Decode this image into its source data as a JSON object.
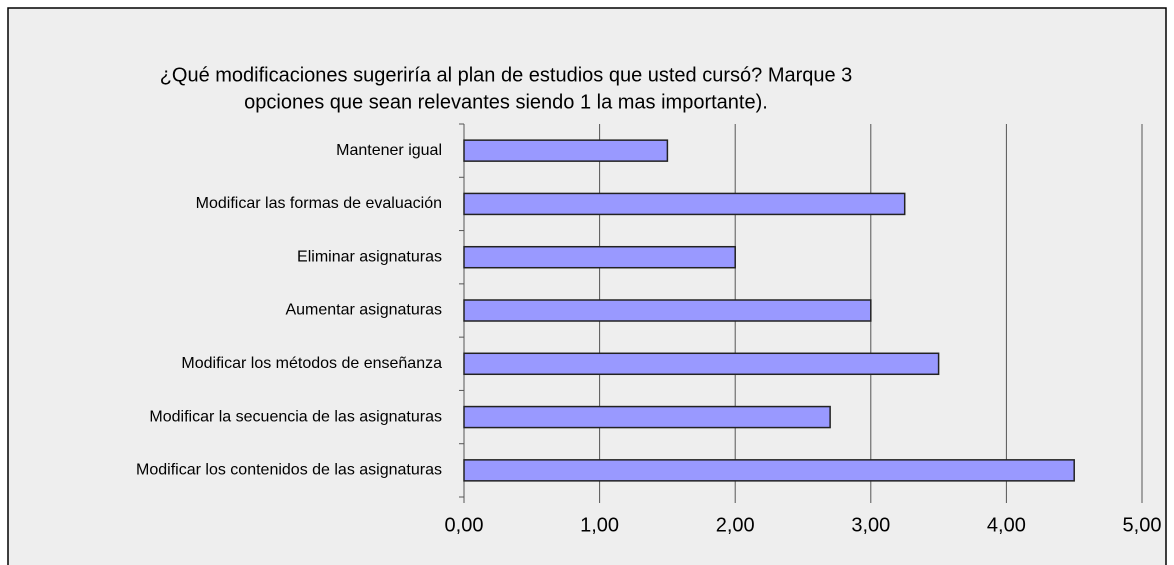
{
  "chart_data": {
    "type": "bar",
    "orientation": "horizontal",
    "title": [
      "¿Qué modificaciones sugeriría al plan de estudios que usted cursó? Marque 3",
      "opciones que sean relevantes siendo 1 la mas importante)."
    ],
    "categories": [
      "Mantener igual",
      "Modificar las formas de evaluación",
      "Eliminar asignaturas",
      "Aumentar asignaturas",
      "Modificar los métodos de enseñanza",
      "Modificar la secuencia de las asignaturas",
      "Modificar los contenidos de las asignaturas"
    ],
    "values": [
      1.5,
      3.25,
      2.0,
      3.0,
      3.5,
      2.7,
      4.5
    ],
    "color": "#9999ff",
    "xlim": [
      0,
      5
    ],
    "xticks": [
      {
        "value": 0,
        "label": "0,00"
      },
      {
        "value": 1,
        "label": "1,00"
      },
      {
        "value": 2,
        "label": "2,00"
      },
      {
        "value": 3,
        "label": "3,00"
      },
      {
        "value": 4,
        "label": "4,00"
      },
      {
        "value": 5,
        "label": "5,00"
      }
    ],
    "grid": true
  }
}
